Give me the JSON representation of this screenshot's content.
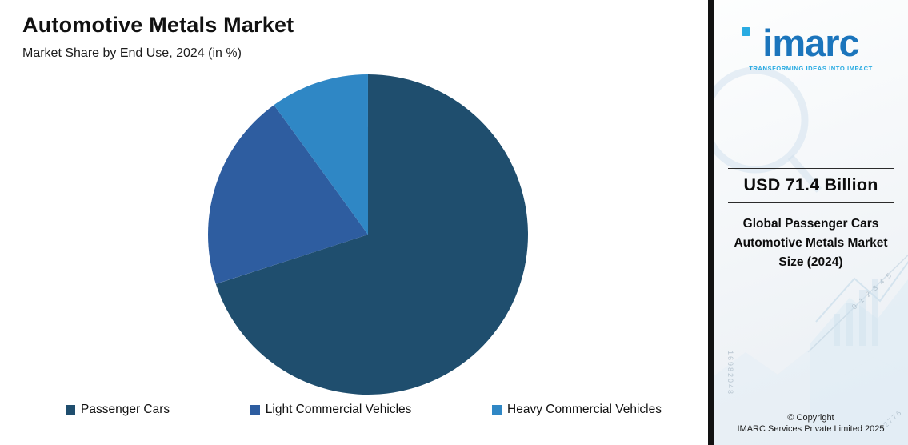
{
  "header": {
    "title": "Automotive Metals Market",
    "subtitle": "Market Share by End Use, 2024 (in %)"
  },
  "chart_data": {
    "type": "pie",
    "title": "Automotive Metals Market",
    "subtitle": "Market Share by End Use, 2024 (in %)",
    "categories": [
      "Passenger Cars",
      "Light Commercial Vehicles",
      "Heavy Commercial Vehicles"
    ],
    "values": [
      70,
      20,
      10
    ],
    "unit": "%",
    "colors": [
      "#1f4e6e",
      "#2e5da0",
      "#2f87c5"
    ],
    "start_angle_deg": 0,
    "direction": "clockwise",
    "legend_position": "bottom",
    "data_labels": false
  },
  "legend": {
    "items": [
      {
        "label": "Passenger Cars"
      },
      {
        "label": "Light Commercial Vehicles"
      },
      {
        "label": "Heavy Commercial Vehicles"
      }
    ]
  },
  "sidebar": {
    "logo_text": "imarc",
    "tagline": "TRANSFORMING IDEAS INTO IMPACT",
    "metric_value": "USD 71.4 Billion",
    "metric_label": "Global Passenger Cars Automotive Metals Market Size (2024)",
    "copyright_line1": "© Copyright",
    "copyright_line2": "IMARC Services Private Limited 2025",
    "decorative_numbers": {
      "axis_ticks": "0 1 2 3 4 5",
      "figure_a": "16982048",
      "figure_b": "22776"
    }
  }
}
